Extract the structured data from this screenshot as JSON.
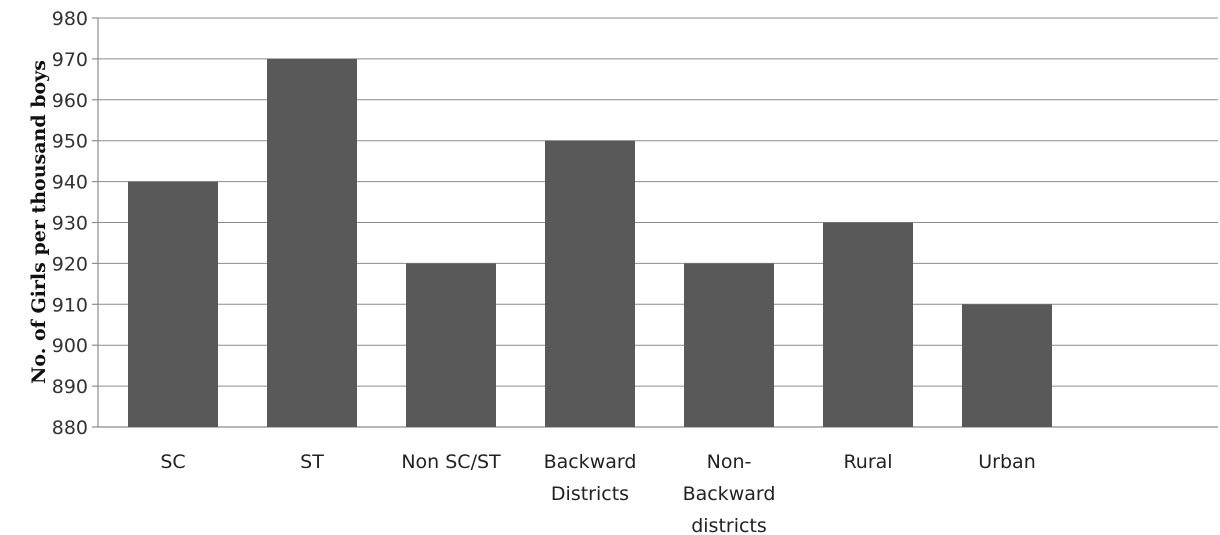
{
  "chart_data": {
    "type": "bar",
    "title": "",
    "xlabel": "",
    "ylabel": "No. of Girls per thousand boys",
    "categories": [
      [
        "SC"
      ],
      [
        "ST"
      ],
      [
        "Non SC/ST"
      ],
      [
        "Backward",
        "Districts"
      ],
      [
        "Non-",
        "Backward",
        "districts"
      ],
      [
        "Rural"
      ],
      [
        "Urban"
      ]
    ],
    "values": [
      940,
      970,
      920,
      950,
      920,
      930,
      910
    ],
    "ylim": [
      880,
      980
    ],
    "yticks": [
      880,
      890,
      900,
      910,
      920,
      930,
      940,
      950,
      960,
      970,
      980
    ],
    "grid": true,
    "legend": "none",
    "bar_color": "#595959"
  }
}
